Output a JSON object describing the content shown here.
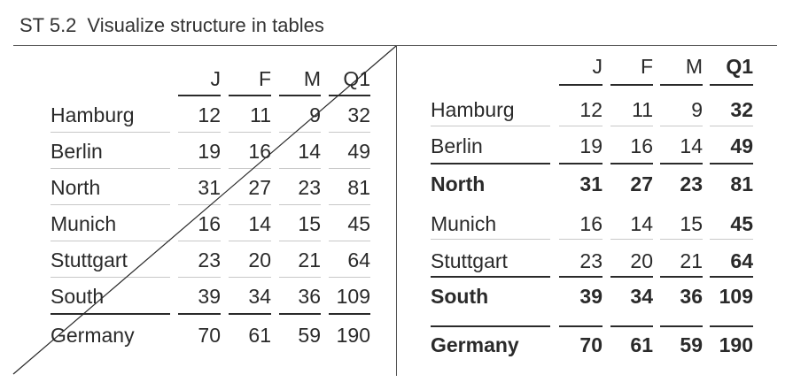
{
  "title": {
    "code": "ST 5.2",
    "text": "Visualize structure in tables"
  },
  "columns": [
    "J",
    "F",
    "M",
    "Q1"
  ],
  "left_table": {
    "rows": [
      {
        "label": "Hamburg",
        "values": [
          "12",
          "11",
          "9",
          "32"
        ]
      },
      {
        "label": "Berlin",
        "values": [
          "19",
          "16",
          "14",
          "49"
        ]
      },
      {
        "label": "North",
        "values": [
          "31",
          "27",
          "23",
          "81"
        ]
      },
      {
        "label": "Munich",
        "values": [
          "16",
          "14",
          "15",
          "45"
        ]
      },
      {
        "label": "Stuttgart",
        "values": [
          "23",
          "20",
          "21",
          "64"
        ]
      },
      {
        "label": "South",
        "values": [
          "39",
          "34",
          "36",
          "109"
        ]
      },
      {
        "label": "Germany",
        "values": [
          "70",
          "61",
          "59",
          "190"
        ]
      }
    ],
    "struck_through": true
  },
  "right_table": {
    "rows": [
      {
        "label": "Hamburg",
        "values": [
          "12",
          "11",
          "9",
          "32"
        ],
        "kind": "detail"
      },
      {
        "label": "Berlin",
        "values": [
          "19",
          "16",
          "14",
          "49"
        ],
        "kind": "detail"
      },
      {
        "label": "North",
        "values": [
          "31",
          "27",
          "23",
          "81"
        ],
        "kind": "subtotal"
      },
      {
        "label": "Munich",
        "values": [
          "16",
          "14",
          "15",
          "45"
        ],
        "kind": "detail"
      },
      {
        "label": "Stuttgart",
        "values": [
          "23",
          "20",
          "21",
          "64"
        ],
        "kind": "detail"
      },
      {
        "label": "South",
        "values": [
          "39",
          "34",
          "36",
          "109"
        ],
        "kind": "subtotal"
      },
      {
        "label": "Germany",
        "values": [
          "70",
          "61",
          "59",
          "190"
        ],
        "kind": "total"
      }
    ]
  }
}
